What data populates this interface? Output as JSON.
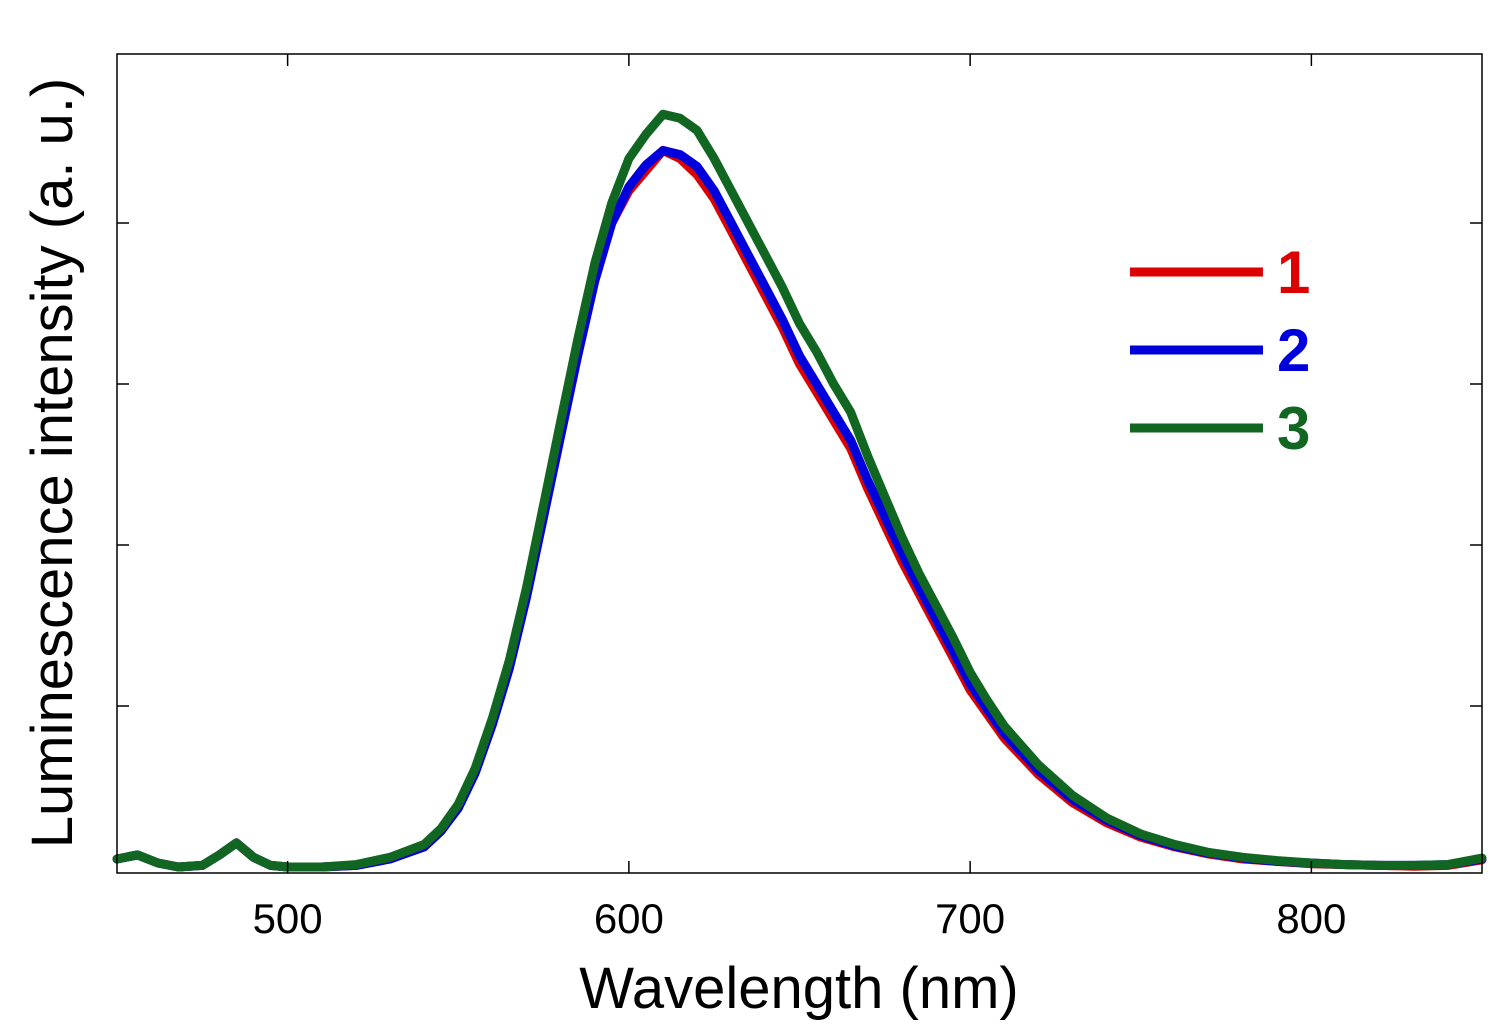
{
  "chart_data": {
    "type": "line",
    "title": "",
    "xlabel": "Wavelength (nm)",
    "ylabel": "Luminescence intensity (a. u.)",
    "xlim": [
      450,
      850
    ],
    "ylim": [
      0,
      1
    ],
    "x_ticks": [
      500,
      600,
      700,
      800
    ],
    "y_ticks": [
      0.2,
      0.4,
      0.6,
      0.8
    ],
    "y_tick_labels_shown": false,
    "grid": false,
    "legend_position": "top-right",
    "series": [
      {
        "name": "1",
        "color": "#dd0000",
        "x": [
          450,
          456,
          462,
          468,
          475,
          480,
          485,
          490,
          495,
          500,
          510,
          520,
          530,
          540,
          545,
          550,
          555,
          560,
          565,
          570,
          575,
          580,
          585,
          590,
          595,
          600,
          605,
          610,
          615,
          620,
          625,
          630,
          635,
          640,
          645,
          650,
          655,
          660,
          665,
          670,
          675,
          680,
          685,
          690,
          695,
          700,
          705,
          710,
          720,
          730,
          740,
          750,
          760,
          770,
          780,
          790,
          800,
          810,
          820,
          830,
          840,
          850
        ],
        "y": [
          0.01,
          0.015,
          0.005,
          0.0,
          0.002,
          0.015,
          0.03,
          0.012,
          0.002,
          0.0,
          0.0,
          0.002,
          0.01,
          0.025,
          0.045,
          0.075,
          0.12,
          0.18,
          0.25,
          0.34,
          0.44,
          0.54,
          0.64,
          0.73,
          0.8,
          0.84,
          0.865,
          0.89,
          0.88,
          0.86,
          0.83,
          0.79,
          0.75,
          0.71,
          0.67,
          0.625,
          0.59,
          0.555,
          0.52,
          0.47,
          0.425,
          0.38,
          0.34,
          0.3,
          0.26,
          0.22,
          0.19,
          0.16,
          0.115,
          0.08,
          0.055,
          0.037,
          0.025,
          0.016,
          0.01,
          0.007,
          0.004,
          0.003,
          0.002,
          0.001,
          0.002,
          0.009
        ]
      },
      {
        "name": "2",
        "color": "#0000dd",
        "x": [
          450,
          456,
          462,
          468,
          475,
          480,
          485,
          490,
          495,
          500,
          510,
          520,
          530,
          540,
          545,
          550,
          555,
          560,
          565,
          570,
          575,
          580,
          585,
          590,
          595,
          600,
          605,
          610,
          615,
          620,
          625,
          630,
          635,
          640,
          645,
          650,
          655,
          660,
          665,
          670,
          675,
          680,
          685,
          690,
          695,
          700,
          705,
          710,
          720,
          730,
          740,
          750,
          760,
          770,
          780,
          790,
          800,
          810,
          820,
          830,
          840,
          850
        ],
        "y": [
          0.01,
          0.015,
          0.005,
          0.0,
          0.002,
          0.015,
          0.03,
          0.012,
          0.002,
          0.0,
          0.0,
          0.002,
          0.01,
          0.025,
          0.045,
          0.073,
          0.117,
          0.177,
          0.247,
          0.335,
          0.435,
          0.535,
          0.635,
          0.728,
          0.8,
          0.845,
          0.872,
          0.89,
          0.885,
          0.87,
          0.84,
          0.8,
          0.76,
          0.72,
          0.68,
          0.635,
          0.6,
          0.565,
          0.53,
          0.48,
          0.435,
          0.39,
          0.348,
          0.308,
          0.268,
          0.228,
          0.196,
          0.166,
          0.12,
          0.084,
          0.058,
          0.039,
          0.026,
          0.017,
          0.011,
          0.007,
          0.005,
          0.003,
          0.002,
          0.002,
          0.003,
          0.01
        ]
      },
      {
        "name": "3",
        "color": "#116622",
        "x": [
          450,
          456,
          462,
          468,
          475,
          480,
          485,
          490,
          495,
          500,
          510,
          520,
          530,
          540,
          545,
          550,
          555,
          560,
          565,
          570,
          575,
          580,
          585,
          590,
          595,
          600,
          605,
          610,
          615,
          620,
          625,
          630,
          635,
          640,
          645,
          650,
          655,
          660,
          665,
          670,
          675,
          680,
          685,
          690,
          695,
          700,
          705,
          710,
          720,
          730,
          740,
          750,
          760,
          770,
          780,
          790,
          800,
          810,
          820,
          830,
          840,
          850
        ],
        "y": [
          0.01,
          0.015,
          0.005,
          0.0,
          0.002,
          0.015,
          0.03,
          0.012,
          0.002,
          0.0,
          0.0,
          0.003,
          0.012,
          0.028,
          0.048,
          0.078,
          0.123,
          0.185,
          0.257,
          0.347,
          0.45,
          0.553,
          0.655,
          0.75,
          0.825,
          0.88,
          0.91,
          0.935,
          0.93,
          0.915,
          0.88,
          0.84,
          0.8,
          0.76,
          0.72,
          0.675,
          0.64,
          0.6,
          0.565,
          0.51,
          0.46,
          0.41,
          0.365,
          0.325,
          0.285,
          0.242,
          0.207,
          0.175,
          0.127,
          0.089,
          0.061,
          0.041,
          0.028,
          0.018,
          0.012,
          0.008,
          0.005,
          0.003,
          0.002,
          0.002,
          0.003,
          0.011
        ]
      }
    ]
  }
}
